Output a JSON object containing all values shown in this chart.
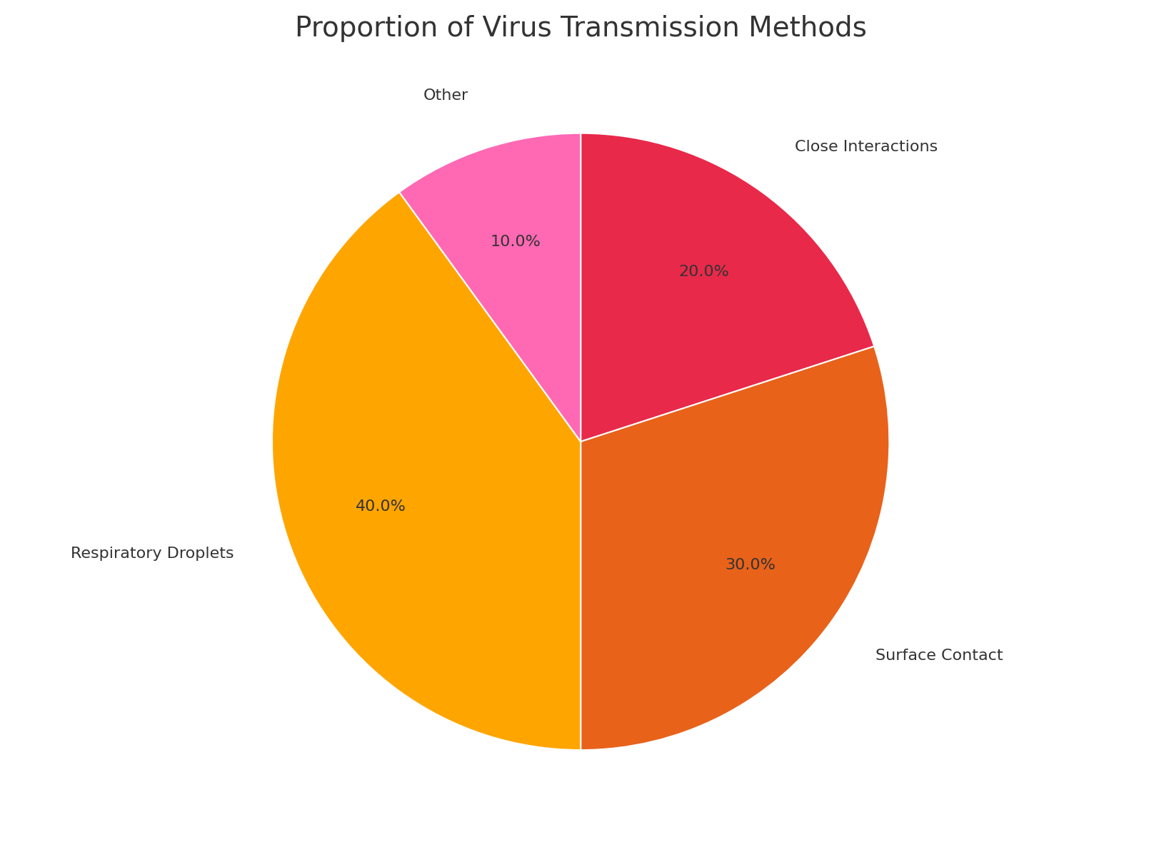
{
  "title": "Proportion of Virus Transmission Methods",
  "labels": [
    "Close Interactions",
    "Surface Contact",
    "Respiratory Droplets",
    "Other"
  ],
  "values": [
    20.0,
    30.0,
    40.0,
    10.0
  ],
  "colors": [
    "#E8294A",
    "#E8621A",
    "#FFA500",
    "#FF69B4"
  ],
  "startangle": 90,
  "title_fontsize": 28,
  "label_fontsize": 16,
  "pct_fontsize": 16,
  "background_color": "#FFFFFF",
  "text_color": "#333333",
  "pct_distance": 0.68,
  "label_distance": 1.18
}
